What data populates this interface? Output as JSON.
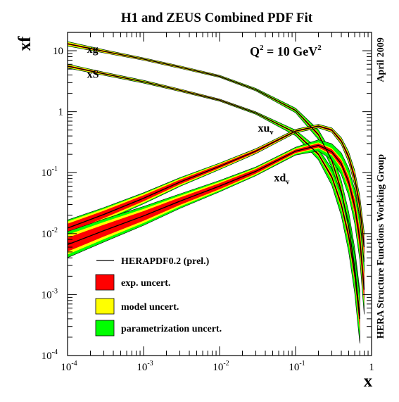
{
  "chart_data": {
    "type": "line",
    "title": "H1 and ZEUS Combined PDF Fit",
    "ylabel": "xf",
    "xlabel": "x",
    "annotation": {
      "main": "Q",
      "sup": "2",
      "rest": " = 10 GeV",
      "sup2": "2"
    },
    "side_labels": {
      "date": "April 2009",
      "group": "HERA Structure Functions Working Group"
    },
    "x_scale": "log",
    "y_scale": "log",
    "xlim": [
      0.0001,
      1
    ],
    "ylim": [
      0.0001,
      20
    ],
    "x_ticks": [
      {
        "v": 0.0001,
        "base": "10",
        "exp": "-4"
      },
      {
        "v": 0.001,
        "base": "10",
        "exp": "-3"
      },
      {
        "v": 0.01,
        "base": "10",
        "exp": "-2"
      },
      {
        "v": 0.1,
        "base": "10",
        "exp": "-1"
      },
      {
        "v": 1,
        "base": "1",
        "exp": ""
      }
    ],
    "y_ticks": [
      {
        "v": 0.0001,
        "base": "10",
        "exp": "-4"
      },
      {
        "v": 0.001,
        "base": "10",
        "exp": "-3"
      },
      {
        "v": 0.01,
        "base": "10",
        "exp": "-2"
      },
      {
        "v": 0.1,
        "base": "10",
        "exp": "-1"
      },
      {
        "v": 1,
        "base": "1",
        "exp": ""
      },
      {
        "v": 10,
        "base": "10",
        "exp": ""
      }
    ],
    "legend": {
      "position": "bottom-left",
      "entries": [
        {
          "label": "HERAPDF0.2 (prel.)",
          "kind": "line"
        },
        {
          "label": "exp. uncert.",
          "kind": "box",
          "color": "#ff0000"
        },
        {
          "label": "model uncert.",
          "kind": "box",
          "color": "#ffff00"
        },
        {
          "label": "parametrization uncert.",
          "kind": "box",
          "color": "#00ff00"
        }
      ]
    },
    "colors": {
      "exp": "#ff0000",
      "model": "#ffff00",
      "param": "#00ff00",
      "central": "#000000"
    },
    "series": [
      {
        "name": "xg",
        "sub": "",
        "label_at": {
          "x": 0.00018,
          "y": 9.2
        },
        "x": [
          0.0001,
          0.0003,
          0.001,
          0.003,
          0.01,
          0.03,
          0.1,
          0.2,
          0.3,
          0.4,
          0.5,
          0.6,
          0.7
        ],
        "central": [
          13,
          9.8,
          7.3,
          5.4,
          3.8,
          2.3,
          1.05,
          0.42,
          0.16,
          0.05,
          0.013,
          0.0028,
          0.00045
        ],
        "exp_rel": [
          0.03,
          0.025,
          0.02,
          0.02,
          0.02,
          0.02,
          0.03,
          0.05,
          0.08,
          0.12,
          0.18,
          0.28,
          0.45
        ],
        "model_rel": [
          0.06,
          0.04,
          0.03,
          0.03,
          0.02,
          0.02,
          0.03,
          0.06,
          0.1,
          0.15,
          0.22,
          0.32,
          0.5
        ],
        "param_rel": [
          0.06,
          0.04,
          0.03,
          0.03,
          0.03,
          0.04,
          0.08,
          0.18,
          0.3,
          0.45,
          0.7,
          1.0,
          1.5
        ]
      },
      {
        "name": "xS",
        "sub": "",
        "label_at": {
          "x": 0.00018,
          "y": 3.6
        },
        "x": [
          0.0001,
          0.0003,
          0.001,
          0.003,
          0.01,
          0.03,
          0.1,
          0.2,
          0.3,
          0.4,
          0.5,
          0.6,
          0.7
        ],
        "central": [
          5.6,
          4.2,
          3.1,
          2.25,
          1.55,
          0.95,
          0.45,
          0.2,
          0.085,
          0.03,
          0.009,
          0.0022,
          0.0004
        ],
        "exp_rel": [
          0.03,
          0.025,
          0.02,
          0.02,
          0.02,
          0.02,
          0.03,
          0.05,
          0.08,
          0.12,
          0.18,
          0.26,
          0.4
        ],
        "model_rel": [
          0.05,
          0.04,
          0.03,
          0.03,
          0.02,
          0.02,
          0.04,
          0.07,
          0.1,
          0.15,
          0.22,
          0.3,
          0.45
        ],
        "param_rel": [
          0.05,
          0.04,
          0.04,
          0.03,
          0.03,
          0.04,
          0.1,
          0.22,
          0.35,
          0.5,
          0.75,
          1.0,
          1.4
        ]
      },
      {
        "name": "xu",
        "sub": "v",
        "label_at": {
          "x": 0.032,
          "y": 0.47
        },
        "x": [
          0.0001,
          0.0003,
          0.001,
          0.003,
          0.01,
          0.03,
          0.1,
          0.2,
          0.3,
          0.4,
          0.5,
          0.6,
          0.7,
          0.8
        ],
        "central": [
          0.0123,
          0.0206,
          0.038,
          0.07,
          0.127,
          0.225,
          0.48,
          0.58,
          0.5,
          0.33,
          0.18,
          0.082,
          0.028,
          0.006
        ],
        "exp_rel": [
          0.18,
          0.15,
          0.12,
          0.09,
          0.07,
          0.05,
          0.03,
          0.03,
          0.04,
          0.06,
          0.1,
          0.15,
          0.22,
          0.35
        ],
        "model_rel": [
          0.22,
          0.18,
          0.14,
          0.11,
          0.08,
          0.06,
          0.04,
          0.04,
          0.05,
          0.08,
          0.12,
          0.18,
          0.26,
          0.4
        ],
        "param_rel": [
          0.22,
          0.18,
          0.14,
          0.11,
          0.08,
          0.06,
          0.05,
          0.05,
          0.06,
          0.1,
          0.16,
          0.24,
          0.35,
          0.55
        ]
      },
      {
        "name": "xd",
        "sub": "v",
        "label_at": {
          "x": 0.052,
          "y": 0.072
        },
        "x": [
          0.0001,
          0.0003,
          0.001,
          0.003,
          0.01,
          0.03,
          0.1,
          0.2,
          0.3,
          0.4,
          0.5,
          0.6,
          0.7,
          0.8
        ],
        "central": [
          0.0066,
          0.0112,
          0.0195,
          0.034,
          0.06,
          0.105,
          0.225,
          0.28,
          0.22,
          0.14,
          0.07,
          0.028,
          0.008,
          0.0012
        ],
        "exp_rel": [
          0.3,
          0.25,
          0.2,
          0.15,
          0.12,
          0.09,
          0.07,
          0.08,
          0.1,
          0.14,
          0.2,
          0.28,
          0.4,
          0.55
        ],
        "model_rel": [
          0.34,
          0.29,
          0.23,
          0.17,
          0.13,
          0.1,
          0.08,
          0.09,
          0.11,
          0.16,
          0.22,
          0.3,
          0.44,
          0.6
        ],
        "param_rel": [
          0.45,
          0.38,
          0.3,
          0.22,
          0.16,
          0.12,
          0.12,
          0.2,
          0.32,
          0.46,
          0.62,
          0.8,
          1.0,
          1.3
        ]
      }
    ]
  }
}
